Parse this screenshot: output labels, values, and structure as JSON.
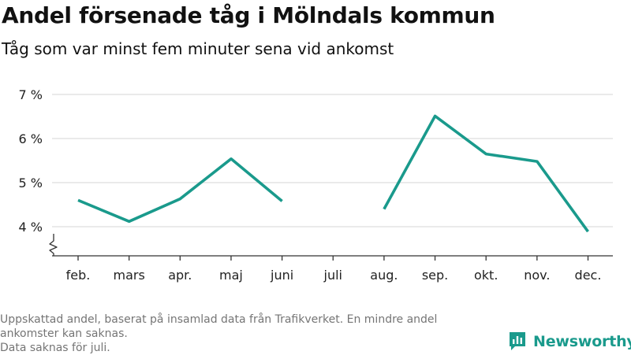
{
  "header": {
    "title": "Andel försenade tåg i Mölndals kommun",
    "subtitle": "Tåg som var minst fem minuter sena vid ankomst"
  },
  "footer": {
    "note_line1": "Uppskattad andel, baserat på insamlad data från Trafikverket. En mindre andel",
    "note_line2": "ankomster kan saknas.",
    "note_line3": "Data saknas för juli.",
    "brand": "Newsworthy"
  },
  "colors": {
    "line": "#1a9a8c",
    "grid": "#dddddd",
    "axis": "#333333",
    "brand": "#1a9a8c"
  },
  "icons": {
    "brand_logo": "newsworthy-logo-icon",
    "axis_break": "axis-break-icon"
  },
  "chart_data": {
    "type": "line",
    "categories": [
      "feb.",
      "mars",
      "apr.",
      "maj",
      "juni",
      "juli",
      "aug.",
      "sep.",
      "okt.",
      "nov.",
      "dec."
    ],
    "series": [
      {
        "values": [
          4.6,
          4.12,
          4.63,
          5.54,
          4.58,
          null,
          4.4,
          6.51,
          5.65,
          5.48,
          3.89
        ]
      }
    ],
    "y_ticks": [
      4,
      5,
      6,
      7
    ],
    "y_tick_labels": [
      "4 %",
      "5 %",
      "6 %",
      "7 %"
    ],
    "ylim": [
      3.4,
      7.1
    ],
    "y_axis_break": true,
    "grid": true,
    "legend": false
  }
}
